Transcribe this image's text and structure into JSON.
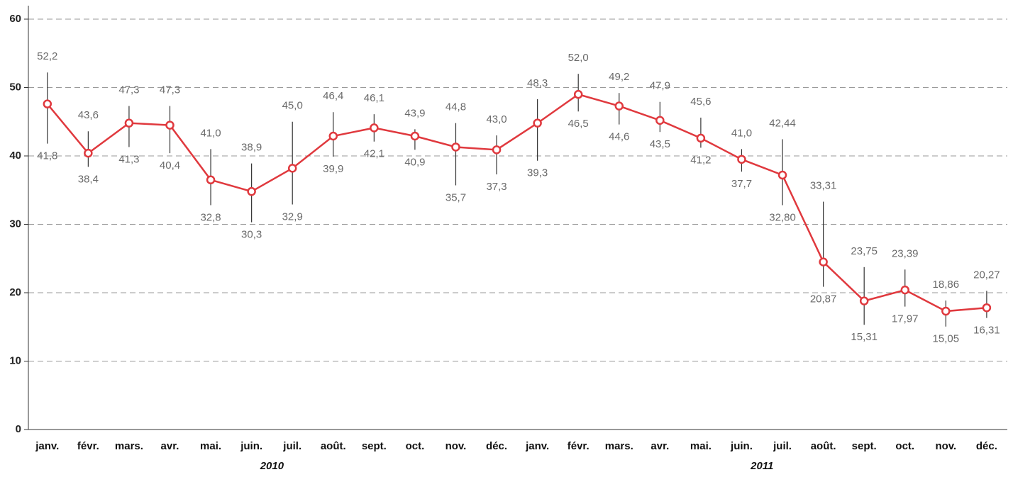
{
  "chart_data": {
    "type": "line",
    "categories": [
      "janv.",
      "févr.",
      "mars.",
      "avr.",
      "mai.",
      "juin.",
      "juil.",
      "août.",
      "sept.",
      "oct.",
      "nov.",
      "déc.",
      "janv.",
      "févr.",
      "mars.",
      "avr.",
      "mai.",
      "juin.",
      "juil.",
      "août.",
      "sept.",
      "oct.",
      "nov.",
      "déc."
    ],
    "groups": [
      {
        "label": "2010",
        "size": 12
      },
      {
        "label": "2011",
        "size": 12
      }
    ],
    "series": [
      {
        "color": "#e0393e",
        "values": [
          47.6,
          40.4,
          44.8,
          44.5,
          36.5,
          34.8,
          38.2,
          42.9,
          44.1,
          42.9,
          41.3,
          40.9,
          44.8,
          49.0,
          47.3,
          45.2,
          42.6,
          39.5,
          37.2,
          24.5,
          18.8,
          20.4,
          17.3,
          17.8
        ]
      }
    ],
    "high": {
      "values": [
        52.2,
        43.6,
        47.3,
        47.3,
        41.0,
        38.9,
        45.0,
        46.4,
        46.1,
        43.9,
        44.8,
        43.0,
        48.3,
        52.0,
        49.2,
        47.9,
        45.6,
        41.0,
        42.44,
        33.31,
        23.75,
        23.39,
        18.86,
        20.27
      ],
      "value_labels": [
        "52,2",
        "43,6",
        "47,3",
        "47,3",
        "41,0",
        "38,9",
        "45,0",
        "46,4",
        "46,1",
        "43,9",
        "44,8",
        "43,0",
        "48,3",
        "52,0",
        "49,2",
        "47,9",
        "45,6",
        "41,0",
        "42,44",
        "33,31",
        "23,75",
        "23,39",
        "18,86",
        "20,27"
      ]
    },
    "low": {
      "values": [
        41.8,
        38.4,
        41.3,
        40.4,
        32.8,
        30.3,
        32.9,
        39.9,
        42.1,
        40.9,
        35.7,
        37.3,
        39.3,
        46.5,
        44.6,
        43.5,
        41.2,
        37.7,
        32.8,
        20.87,
        15.31,
        17.97,
        15.05,
        16.31
      ],
      "value_labels": [
        "41,8",
        "38,4",
        "41,3",
        "40,4",
        "32,8",
        "30,3",
        "32,9",
        "39,9",
        "42,1",
        "40,9",
        "35,7",
        "37,3",
        "39,3",
        "46,5",
        "44,6",
        "43,5",
        "41,2",
        "37,7",
        "32,80",
        "20,87",
        "15,31",
        "17,97",
        "15,05",
        "16,31"
      ]
    },
    "ylim": [
      0,
      60
    ],
    "yticks": [
      0,
      10,
      20,
      30,
      40,
      50,
      60
    ],
    "grid": true
  }
}
